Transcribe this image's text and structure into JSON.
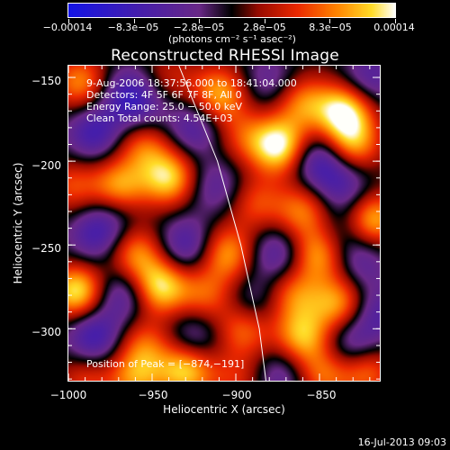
{
  "colorbar": {
    "tick_labels": [
      "−0.00014",
      "−8.3e−05",
      "−2.8e−05",
      "2.8e−05",
      "8.3e−05",
      "0.00014"
    ],
    "units": "(photons cm⁻² s⁻¹ asec⁻²)",
    "range": [
      -0.00014,
      0.00014
    ]
  },
  "info": {
    "time_range": "9‑Aug‑2006 18:37:56.000 to 18:41:04.000",
    "detectors": "Detectors: 4F 5F 6F 7F 8F, All 0",
    "energy": "Energy Range: 25.0 − 50.0 keV",
    "clean": "Clean   Total counts: 4.54E+03",
    "peak": "Position of Peak = [−874,−191]"
  },
  "chart_data": {
    "type": "heatmap",
    "title": "Reconstructed RHESSI Image",
    "xlabel": "Heliocentric X (arcsec)",
    "ylabel": "Heliocentric Y (arcsec)",
    "xlim": [
      -1000,
      -814
    ],
    "ylim": [
      -331,
      -143
    ],
    "x_ticks": [
      -1000,
      -950,
      -900,
      -850
    ],
    "y_ticks": [
      -150,
      -200,
      -250,
      -300
    ],
    "x_tick_labels": [
      "−1000",
      "−950",
      "−900",
      "−850"
    ],
    "y_tick_labels": [
      "−150",
      "−200",
      "−250",
      "−300"
    ],
    "peak_position": [
      -874,
      -191
    ],
    "limb_curve": [
      [
        -934,
        -143
      ],
      [
        -911,
        -200
      ],
      [
        -897,
        -250
      ],
      [
        -886,
        -300
      ],
      [
        -882,
        -331
      ]
    ],
    "blobs": [
      {
        "x": -993,
        "y": -153,
        "v": 0.65
      },
      {
        "x": -965,
        "y": -160,
        "v": -0.55
      },
      {
        "x": -940,
        "y": -150,
        "v": 0.3
      },
      {
        "x": -910,
        "y": -160,
        "v": 0.75
      },
      {
        "x": -880,
        "y": -152,
        "v": -0.35
      },
      {
        "x": -860,
        "y": -165,
        "v": 0.6
      },
      {
        "x": -835,
        "y": -170,
        "v": 0.95
      },
      {
        "x": -820,
        "y": -150,
        "v": -0.45
      },
      {
        "x": -985,
        "y": -183,
        "v": -0.6
      },
      {
        "x": -955,
        "y": -190,
        "v": 0.55
      },
      {
        "x": -925,
        "y": -180,
        "v": -0.5
      },
      {
        "x": -895,
        "y": -185,
        "v": 0.4
      },
      {
        "x": -874,
        "y": -191,
        "v": 1.0
      },
      {
        "x": -850,
        "y": -200,
        "v": -0.6
      },
      {
        "x": -830,
        "y": -190,
        "v": 0.7
      },
      {
        "x": -998,
        "y": -215,
        "v": 0.45
      },
      {
        "x": -970,
        "y": -215,
        "v": 0.7
      },
      {
        "x": -940,
        "y": -210,
        "v": 0.85
      },
      {
        "x": -912,
        "y": -215,
        "v": -0.4
      },
      {
        "x": -888,
        "y": -225,
        "v": 0.45
      },
      {
        "x": -860,
        "y": -230,
        "v": 0.6
      },
      {
        "x": -835,
        "y": -215,
        "v": -0.45
      },
      {
        "x": -818,
        "y": -235,
        "v": 0.8
      },
      {
        "x": -985,
        "y": -245,
        "v": -0.45
      },
      {
        "x": -960,
        "y": -255,
        "v": 0.65
      },
      {
        "x": -930,
        "y": -250,
        "v": -0.55
      },
      {
        "x": -905,
        "y": -255,
        "v": 0.7
      },
      {
        "x": -875,
        "y": -255,
        "v": -0.5
      },
      {
        "x": -850,
        "y": -255,
        "v": 0.75
      },
      {
        "x": -825,
        "y": -260,
        "v": -0.4
      },
      {
        "x": -995,
        "y": -278,
        "v": 0.95
      },
      {
        "x": -968,
        "y": -280,
        "v": -0.5
      },
      {
        "x": -945,
        "y": -275,
        "v": 0.9
      },
      {
        "x": -918,
        "y": -280,
        "v": 0.5
      },
      {
        "x": -890,
        "y": -285,
        "v": -0.35
      },
      {
        "x": -865,
        "y": -280,
        "v": 0.55
      },
      {
        "x": -838,
        "y": -285,
        "v": 0.7
      },
      {
        "x": -815,
        "y": -290,
        "v": -0.45
      },
      {
        "x": -985,
        "y": -305,
        "v": -0.65
      },
      {
        "x": -955,
        "y": -310,
        "v": 0.5
      },
      {
        "x": -925,
        "y": -305,
        "v": -0.4
      },
      {
        "x": -895,
        "y": -300,
        "v": 0.6
      },
      {
        "x": -860,
        "y": -305,
        "v": 0.75
      },
      {
        "x": -830,
        "y": -310,
        "v": -0.5
      },
      {
        "x": -990,
        "y": -330,
        "v": 0.4
      },
      {
        "x": -960,
        "y": -330,
        "v": 0.6
      },
      {
        "x": -930,
        "y": -325,
        "v": 0.85
      },
      {
        "x": -900,
        "y": -330,
        "v": 0.35
      },
      {
        "x": -872,
        "y": -328,
        "v": -0.4
      },
      {
        "x": -848,
        "y": -328,
        "v": 0.55
      },
      {
        "x": -822,
        "y": -325,
        "v": 0.6
      },
      {
        "x": -975,
        "y": -235,
        "v": -0.3
      },
      {
        "x": -955,
        "y": -170,
        "v": -0.3
      },
      {
        "x": -838,
        "y": -243,
        "v": -0.3
      }
    ]
  },
  "footer": {
    "timestamp": "16‑Jul‑2013 09:03"
  }
}
